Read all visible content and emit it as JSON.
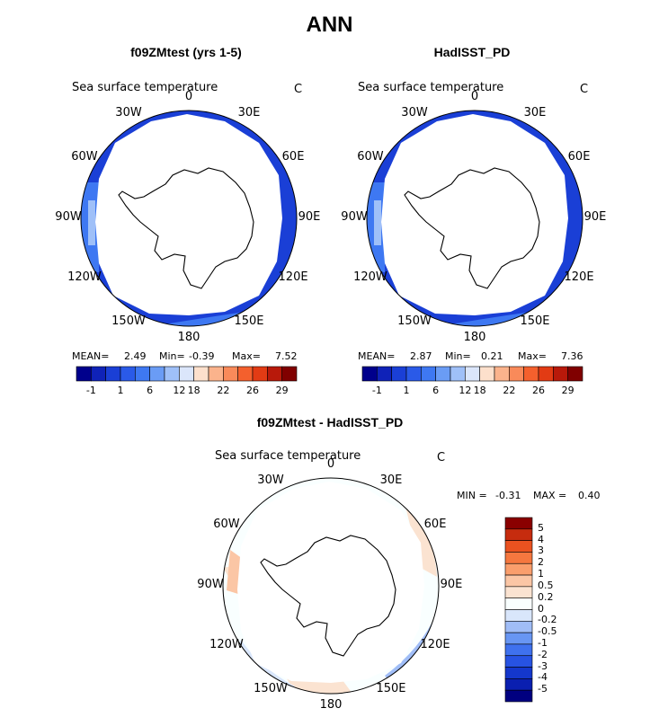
{
  "title": "ANN",
  "palettes": {
    "sst": [
      "#00008c",
      "#0f22b8",
      "#1a3fd6",
      "#2a5ae8",
      "#3e78f2",
      "#6a9cf5",
      "#9fc0f8",
      "#dbe6fb",
      "#fde0cc",
      "#fbb38c",
      "#f98a5a",
      "#f4602d",
      "#e23b14",
      "#b8190a",
      "#800000"
    ],
    "diff": [
      "#000080",
      "#0a1fb0",
      "#1437cc",
      "#2753e3",
      "#3f71ee",
      "#6896f3",
      "#a0bdf7",
      "#d9e6fb",
      "#f9ffff",
      "#fbe3d1",
      "#fbc6a5",
      "#fa9e6c",
      "#f5773f",
      "#ea5220",
      "#c62c0e",
      "#8a0000"
    ]
  },
  "chart_data": [
    {
      "type": "heatmap",
      "id": "model",
      "title": "f09ZMtest (yrs 1-5)",
      "varname": "Sea surface temperature",
      "unit": "C",
      "lon_labels": [
        "0",
        "30E",
        "60E",
        "90E",
        "120E",
        "150E",
        "180",
        "150W",
        "120W",
        "90W",
        "60W",
        "30W"
      ],
      "stats": {
        "mean_label": "MEAN=",
        "mean": "2.49",
        "min_label": "Min=",
        "min": "-0.39",
        "max_label": "Max=",
        "max": "7.52"
      },
      "colorbar": {
        "labels": [
          "-1",
          "1",
          "6",
          "12",
          "18",
          "22",
          "26",
          "29"
        ]
      }
    },
    {
      "type": "heatmap",
      "id": "obs",
      "title": "HadISST_PD",
      "varname": "Sea surface temperature",
      "unit": "C",
      "lon_labels": [
        "0",
        "30E",
        "60E",
        "90E",
        "120E",
        "150E",
        "180",
        "150W",
        "120W",
        "90W",
        "60W",
        "30W"
      ],
      "stats": {
        "mean_label": "MEAN=",
        "mean": "2.87",
        "min_label": "Min=",
        "min": "0.21",
        "max_label": "Max=",
        "max": "7.36"
      },
      "colorbar": {
        "labels": [
          "-1",
          "1",
          "6",
          "12",
          "18",
          "22",
          "26",
          "29"
        ]
      }
    },
    {
      "type": "heatmap",
      "id": "diff",
      "title": "f09ZMtest - HadISST_PD",
      "varname": "Sea surface temperature",
      "unit": "C",
      "lon_labels": [
        "0",
        "30E",
        "60E",
        "90E",
        "120E",
        "150E",
        "180",
        "150W",
        "120W",
        "90W",
        "60W",
        "30W"
      ],
      "stats": {
        "min_label": "MIN =",
        "min": "-0.31",
        "max_label": "MAX =",
        "max": "0.40"
      },
      "colorbar": {
        "labels": [
          "5",
          "4",
          "3",
          "2",
          "1",
          "0.5",
          "0.2",
          "0",
          "-0.2",
          "-0.5",
          "-1",
          "-2",
          "-3",
          "-4",
          "-5"
        ]
      }
    }
  ]
}
